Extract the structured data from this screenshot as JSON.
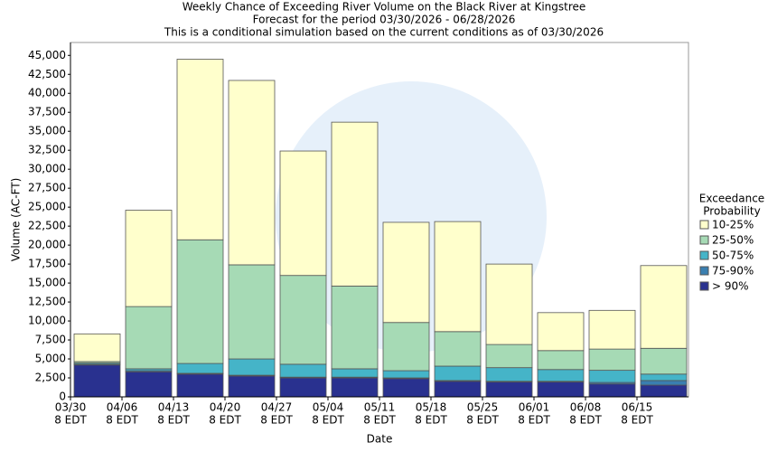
{
  "chart_data": {
    "type": "stacked-bar",
    "title": "Weekly Chance of Exceeding River Volume on the Black River at Kingstree",
    "subtitle": "Forecast for the period 03/30/2026 - 06/28/2026",
    "note": "This is a conditional simulation based on the current conditions as of 03/30/2026",
    "xlabel": "Date",
    "ylabel": "Volume (AC-FT)",
    "legend_title": [
      "Exceedance",
      "Probability"
    ],
    "legend": "right",
    "categories": [
      [
        "03/30",
        "8 EDT"
      ],
      [
        "04/06",
        "8 EDT"
      ],
      [
        "04/13",
        "8 EDT"
      ],
      [
        "04/20",
        "8 EDT"
      ],
      [
        "04/27",
        "8 EDT"
      ],
      [
        "05/04",
        "8 EDT"
      ],
      [
        "05/11",
        "8 EDT"
      ],
      [
        "05/18",
        "8 EDT"
      ],
      [
        "05/25",
        "8 EDT"
      ],
      [
        "06/01",
        "8 EDT"
      ],
      [
        "06/08",
        "8 EDT"
      ],
      [
        "06/15",
        "8 EDT"
      ]
    ],
    "series": [
      {
        "name": "> 90%",
        "color": "#29318f",
        "values": [
          4200,
          3300,
          3000,
          2750,
          2500,
          2500,
          2400,
          2050,
          1950,
          1950,
          1700,
          1550
        ]
      },
      {
        "name": "75-90%",
        "color": "#3a7fb0",
        "values": [
          100,
          150,
          100,
          100,
          100,
          100,
          100,
          100,
          100,
          100,
          200,
          600
        ]
      },
      {
        "name": "50-75%",
        "color": "#45b4c8",
        "values": [
          150,
          250,
          1300,
          2150,
          1700,
          1100,
          950,
          1900,
          1800,
          1550,
          1600,
          850
        ]
      },
      {
        "name": "25-50%",
        "color": "#a6dab5",
        "values": [
          200,
          8200,
          16300,
          12400,
          11700,
          10900,
          6350,
          4550,
          3050,
          2500,
          2800,
          3400
        ]
      },
      {
        "name": "10-25%",
        "color": "#ffffcc",
        "values": [
          3650,
          12700,
          23800,
          24300,
          16400,
          21600,
          13200,
          14500,
          10600,
          5000,
          5100,
          10900
        ]
      }
    ],
    "ylim": [
      0,
      46700
    ],
    "yticks": [
      0,
      {
        "value": 2500,
        "label": "2,500"
      },
      {
        "value": 5000,
        "label": "5,000"
      },
      {
        "value": 7500,
        "label": "7,500"
      },
      {
        "value": 10000,
        "label": "10,000"
      },
      {
        "value": 12500,
        "label": "12,500"
      },
      {
        "value": 15000,
        "label": "15,000"
      },
      {
        "value": 17500,
        "label": "17,500"
      },
      {
        "value": 20000,
        "label": "20,000"
      },
      {
        "value": 22500,
        "label": "22,500"
      },
      {
        "value": 25000,
        "label": "25,000"
      },
      {
        "value": 27500,
        "label": "27,500"
      },
      {
        "value": 30000,
        "label": "30,000"
      },
      {
        "value": 32500,
        "label": "32,500"
      },
      {
        "value": 35000,
        "label": "35,000"
      },
      {
        "value": 37500,
        "label": "37,500"
      },
      {
        "value": 40000,
        "label": "40,000"
      },
      {
        "value": 42500,
        "label": "42,500"
      },
      {
        "value": 45000,
        "label": "45,000"
      }
    ],
    "grid": false
  }
}
